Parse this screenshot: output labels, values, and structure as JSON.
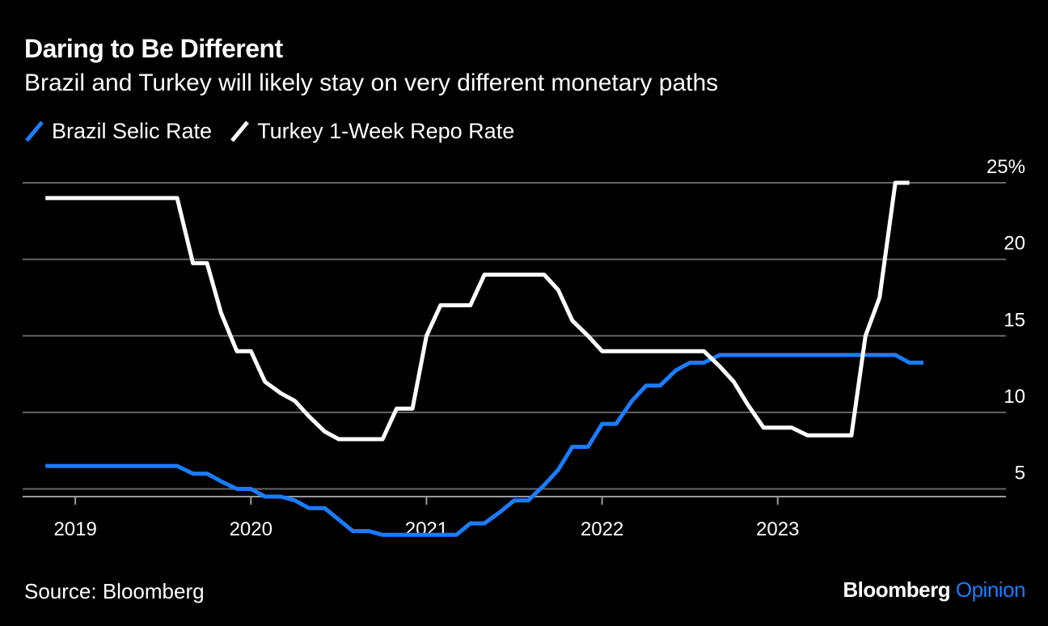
{
  "title": "Daring to Be Different",
  "subtitle": "Brazil and Turkey will likely stay on very different monetary paths",
  "source": "Source: Bloomberg",
  "brand": {
    "name": "Bloomberg",
    "opinion": "Opinion",
    "opinion_color": "#1A7CFF"
  },
  "colors": {
    "background": "#000000",
    "grid": "#666666",
    "text": "#FFFFFF"
  },
  "chart_data": {
    "type": "line",
    "ylim": [
      4.5,
      25
    ],
    "yticks": [
      {
        "value": 25,
        "label": "25%"
      },
      {
        "value": 20,
        "label": "20"
      },
      {
        "value": 15,
        "label": "15"
      },
      {
        "value": 10,
        "label": "10"
      },
      {
        "value": 5,
        "label": "5"
      }
    ],
    "xlim": [
      2018.7,
      2024.3
    ],
    "xticks": [
      {
        "value": 2019.0,
        "label": "2019"
      },
      {
        "value": 2020.0,
        "label": "2020"
      },
      {
        "value": 2021.0,
        "label": "2021"
      },
      {
        "value": 2022.0,
        "label": "2022"
      },
      {
        "value": 2023.0,
        "label": "2023"
      }
    ],
    "grid": true,
    "legend_position": "top-left",
    "series": [
      {
        "name": "Brazil Selic Rate",
        "color": "#1A7CFF",
        "points": [
          [
            2018.83,
            6.5
          ],
          [
            2019.58,
            6.5
          ],
          [
            2019.67,
            6.0
          ],
          [
            2019.75,
            6.0
          ],
          [
            2019.83,
            5.5
          ],
          [
            2019.92,
            5.0
          ],
          [
            2020.0,
            5.0
          ],
          [
            2020.08,
            4.5
          ],
          [
            2020.17,
            4.5
          ],
          [
            2020.25,
            4.25
          ],
          [
            2020.33,
            3.75
          ],
          [
            2020.42,
            3.75
          ],
          [
            2020.5,
            3.0
          ],
          [
            2020.58,
            2.25
          ],
          [
            2020.67,
            2.25
          ],
          [
            2020.75,
            2.0
          ],
          [
            2021.17,
            2.0
          ],
          [
            2021.25,
            2.75
          ],
          [
            2021.33,
            2.75
          ],
          [
            2021.42,
            3.5
          ],
          [
            2021.5,
            4.25
          ],
          [
            2021.58,
            4.25
          ],
          [
            2021.67,
            5.25
          ],
          [
            2021.75,
            6.25
          ],
          [
            2021.83,
            7.75
          ],
          [
            2021.92,
            7.75
          ],
          [
            2022.0,
            9.25
          ],
          [
            2022.08,
            9.25
          ],
          [
            2022.17,
            10.75
          ],
          [
            2022.25,
            11.75
          ],
          [
            2022.33,
            11.75
          ],
          [
            2022.42,
            12.75
          ],
          [
            2022.5,
            13.25
          ],
          [
            2022.58,
            13.25
          ],
          [
            2022.67,
            13.75
          ],
          [
            2023.58,
            13.75
          ],
          [
            2023.67,
            13.75
          ],
          [
            2023.75,
            13.25
          ],
          [
            2023.83,
            13.25
          ]
        ]
      },
      {
        "name": "Turkey 1-Week Repo Rate",
        "color": "#FFFFFF",
        "points": [
          [
            2018.83,
            24.0
          ],
          [
            2019.58,
            24.0
          ],
          [
            2019.67,
            19.75
          ],
          [
            2019.75,
            19.75
          ],
          [
            2019.83,
            16.5
          ],
          [
            2019.92,
            14.0
          ],
          [
            2020.0,
            14.0
          ],
          [
            2020.08,
            12.0
          ],
          [
            2020.17,
            11.25
          ],
          [
            2020.25,
            10.75
          ],
          [
            2020.33,
            9.75
          ],
          [
            2020.42,
            8.75
          ],
          [
            2020.5,
            8.25
          ],
          [
            2020.75,
            8.25
          ],
          [
            2020.83,
            10.25
          ],
          [
            2020.92,
            10.25
          ],
          [
            2021.0,
            15.0
          ],
          [
            2021.08,
            17.0
          ],
          [
            2021.25,
            17.0
          ],
          [
            2021.33,
            19.0
          ],
          [
            2021.67,
            19.0
          ],
          [
            2021.75,
            18.0
          ],
          [
            2021.83,
            16.0
          ],
          [
            2021.92,
            15.0
          ],
          [
            2022.0,
            14.0
          ],
          [
            2022.58,
            14.0
          ],
          [
            2022.67,
            13.0
          ],
          [
            2022.75,
            12.0
          ],
          [
            2022.83,
            10.5
          ],
          [
            2022.92,
            9.0
          ],
          [
            2023.08,
            9.0
          ],
          [
            2023.17,
            8.5
          ],
          [
            2023.42,
            8.5
          ],
          [
            2023.5,
            15.0
          ],
          [
            2023.58,
            17.5
          ],
          [
            2023.67,
            25.0
          ],
          [
            2023.75,
            25.0
          ]
        ]
      }
    ]
  }
}
